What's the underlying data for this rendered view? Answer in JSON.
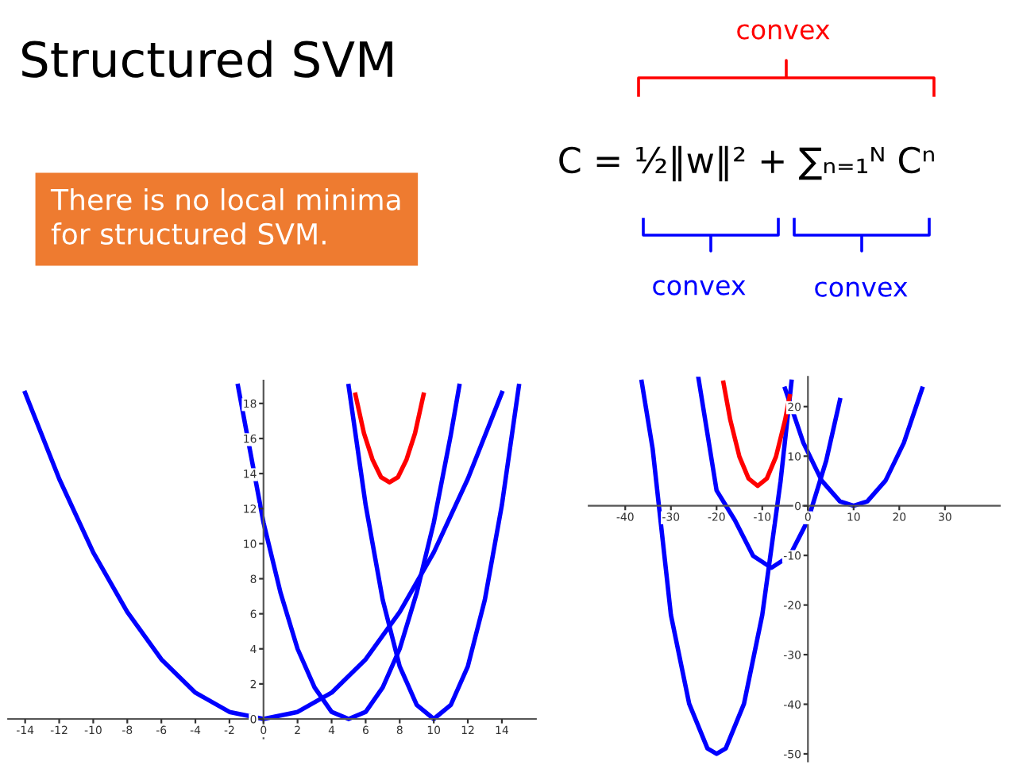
{
  "chart_data": [
    {
      "type": "line",
      "title": "Structured SVM",
      "annotations": [
        "There is no local minima\nfor structured SVM.",
        "C = ½‖w‖² + ∑ₙ₌₁ᴺ Cⁿ",
        "convex",
        "convex",
        "convex"
      ],
      "series": [
        {
          "color": "#0000ff",
          "x": [
            -14,
            -12,
            -10,
            -8,
            -6,
            -4,
            -2,
            0,
            2,
            4,
            6,
            8,
            10,
            12,
            14
          ],
          "values": [
            18.6,
            13.7,
            9.5,
            6.1,
            3.4,
            1.5,
            0.4,
            0,
            0.4,
            1.5,
            3.4,
            6.1,
            9.5,
            13.7,
            18.6
          ]
        },
        {
          "color": "#0000ff",
          "x": [
            -1.5,
            0,
            1,
            2,
            3,
            4,
            5,
            6,
            7,
            8,
            9,
            10,
            11,
            11.5
          ],
          "values": [
            19.0,
            11.2,
            7.2,
            4.0,
            1.8,
            0.4,
            0,
            0.4,
            1.8,
            4.0,
            7.2,
            11.2,
            16.2,
            19.0
          ]
        },
        {
          "color": "#0000ff",
          "x": [
            5,
            6,
            7,
            8,
            9,
            10,
            11,
            12,
            13,
            14,
            15
          ],
          "values": [
            19.0,
            12.2,
            6.8,
            3.0,
            0.8,
            0,
            0.8,
            3.0,
            6.8,
            12.2,
            19.0
          ]
        },
        {
          "color": "#ff0000",
          "x": [
            5.4,
            5.9,
            6.4,
            6.9,
            7.4,
            7.9,
            8.4,
            8.9,
            9.4
          ],
          "values": [
            18.5,
            16.3,
            14.8,
            13.8,
            13.5,
            13.8,
            14.8,
            16.3,
            18.5
          ]
        }
      ],
      "xlim": [
        -15,
        16
      ],
      "ylim": [
        -1.1,
        19.3
      ],
      "xticks": [
        -14,
        -12,
        -10,
        -8,
        -6,
        -4,
        -2,
        0,
        2,
        4,
        6,
        8,
        10,
        12,
        14
      ],
      "yticks": [
        0,
        2,
        4,
        6,
        8,
        10,
        12,
        14,
        16,
        18
      ],
      "grid": false,
      "legend": false,
      "marker": "none",
      "line_style": "solid"
    },
    {
      "type": "line",
      "series": [
        {
          "color": "#0000ff",
          "x": [
            -5,
            -1,
            3,
            7,
            10,
            13,
            17,
            21,
            25
          ],
          "values": [
            23.6,
            12.7,
            5.1,
            0.9,
            0,
            0.9,
            5.1,
            12.7,
            23.6
          ]
        },
        {
          "color": "#0000ff",
          "x": [
            -24,
            -20,
            -16,
            -12,
            -8,
            -4,
            0,
            4,
            7
          ],
          "values": [
            25.9,
            3.1,
            -2.9,
            -10.1,
            -12.5,
            -10.1,
            -2.9,
            9.1,
            21.3
          ]
        },
        {
          "color": "#0000ff",
          "x": [
            -36.4,
            -34,
            -30,
            -26,
            -22,
            -20,
            -18,
            -14,
            -10,
            -6,
            -3.6
          ],
          "values": [
            25,
            11.5,
            -22.0,
            -39.9,
            -48.9,
            -50,
            -48.9,
            -39.9,
            -22.0,
            4.9,
            25
          ]
        },
        {
          "color": "#ff0000",
          "x": [
            -18.5,
            -17,
            -15,
            -13,
            -11,
            -9,
            -7,
            -5,
            -4
          ],
          "values": [
            24.8,
            17.3,
            9.9,
            5.5,
            4,
            5.5,
            9.9,
            17.3,
            22.1
          ]
        }
      ],
      "xlim": [
        -48,
        42
      ],
      "ylim": [
        -51.5,
        26
      ],
      "xticks": [
        -40,
        -30,
        -20,
        -10,
        0,
        10,
        20,
        30
      ],
      "yticks": [
        -50,
        -40,
        -30,
        -20,
        -10,
        0,
        10,
        20
      ],
      "grid": false,
      "legend": false,
      "marker": "none",
      "line_style": "solid"
    }
  ]
}
